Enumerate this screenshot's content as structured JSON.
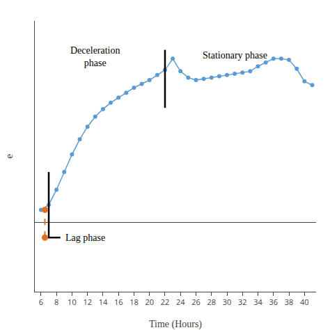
{
  "chart_data": {
    "type": "line",
    "xlabel": "Time (Hours)",
    "ylabel": "e",
    "x": [
      6,
      7,
      8,
      9,
      10,
      11,
      12,
      13,
      14,
      15,
      16,
      17,
      18,
      19,
      20,
      21,
      22,
      23,
      24,
      25,
      26,
      27,
      28,
      29,
      30,
      31,
      32,
      33,
      34,
      35,
      36,
      37,
      38,
      39,
      40,
      41
    ],
    "series": [
      {
        "values": [
          0.1,
          0.14,
          0.26,
          0.4,
          0.54,
          0.66,
          0.76,
          0.84,
          0.9,
          0.95,
          0.99,
          1.03,
          1.07,
          1.1,
          1.13,
          1.17,
          1.21,
          1.3,
          1.2,
          1.15,
          1.13,
          1.14,
          1.15,
          1.16,
          1.17,
          1.18,
          1.19,
          1.2,
          1.24,
          1.27,
          1.3,
          1.3,
          1.29,
          1.22,
          1.12,
          1.09
        ],
        "color": "#5b9bd5",
        "marker": "circle",
        "line_style": "solid"
      }
    ],
    "xlim": [
      5.2,
      41.5
    ],
    "xticks": [
      6,
      8,
      10,
      12,
      14,
      16,
      18,
      20,
      22,
      24,
      26,
      28,
      30,
      32,
      34,
      36,
      38,
      40
    ],
    "ylim": [
      -0.55,
      1.6
    ],
    "yticks": [],
    "tick_labels": "x",
    "grid": false,
    "segments": [
      {
        "x": [
          7,
          7
        ],
        "y": [
          -0.12,
          0.4
        ],
        "color": "#000000",
        "line_style": "solid"
      },
      {
        "x": [
          22,
          22
        ],
        "y": [
          0.91,
          1.37
        ],
        "color": "#000000",
        "line_style": "solid"
      },
      {
        "x": [
          6.5,
          6.5
        ],
        "y": [
          -0.12,
          0.1
        ],
        "color": "#e07020",
        "line_style": "dashed"
      },
      {
        "x": [
          6.5,
          8.5
        ],
        "y": [
          -0.12,
          -0.12
        ],
        "color": "#000000",
        "line_style": "solid"
      }
    ],
    "points": {
      "x": [
        6.5,
        6.5
      ],
      "y": [
        0.1,
        -0.12
      ],
      "color": "#e07020",
      "marker": "circle"
    },
    "annotations": [
      {
        "text": "Lag phase",
        "x": 9.0,
        "y": -0.12
      },
      {
        "text": "Deceleration\nphase",
        "x": 13,
        "y": 1.42
      },
      {
        "text": "Stationary phase",
        "x": 31,
        "y": 1.38
      }
    ]
  }
}
